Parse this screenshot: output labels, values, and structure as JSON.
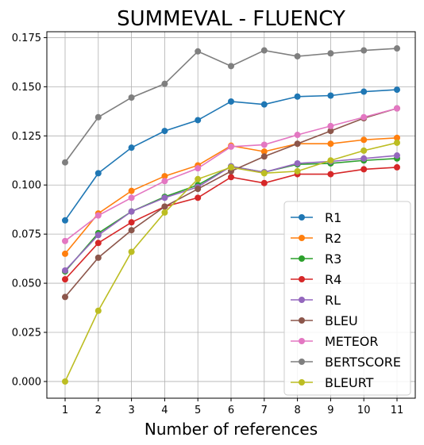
{
  "chart_data": {
    "type": "line",
    "title": "SUMMEVAL - FLUENCY",
    "xlabel": "Number of references",
    "ylabel": "",
    "x": [
      1,
      2,
      3,
      4,
      5,
      6,
      7,
      8,
      9,
      10,
      11
    ],
    "xlim": [
      0.45,
      11.55
    ],
    "ylim": [
      -0.0085,
      0.178
    ],
    "yticks": [
      0.0,
      0.025,
      0.05,
      0.075,
      0.1,
      0.125,
      0.15,
      0.175
    ],
    "ytick_labels": [
      "0.000",
      "0.025",
      "0.050",
      "0.075",
      "0.100",
      "0.125",
      "0.150",
      "0.175"
    ],
    "xtick_labels": [
      "1",
      "2",
      "3",
      "4",
      "5",
      "6",
      "7",
      "8",
      "9",
      "10",
      "11"
    ],
    "grid": true,
    "legend_position": "lower-right",
    "series": [
      {
        "name": "R1",
        "color": "#1f77b4",
        "values": [
          0.082,
          0.106,
          0.119,
          0.1275,
          0.133,
          0.1425,
          0.141,
          0.145,
          0.1455,
          0.1475,
          0.1485
        ]
      },
      {
        "name": "R2",
        "color": "#ff7f0e",
        "values": [
          0.065,
          0.0855,
          0.097,
          0.1045,
          0.11,
          0.12,
          0.117,
          0.121,
          0.121,
          0.123,
          0.124
        ]
      },
      {
        "name": "R3",
        "color": "#2ca02c",
        "values": [
          0.056,
          0.0755,
          0.0865,
          0.094,
          0.1,
          0.1095,
          0.1065,
          0.1105,
          0.111,
          0.1125,
          0.1135
        ]
      },
      {
        "name": "R4",
        "color": "#d62728",
        "values": [
          0.052,
          0.0705,
          0.081,
          0.089,
          0.0935,
          0.104,
          0.101,
          0.1055,
          0.1055,
          0.108,
          0.109
        ]
      },
      {
        "name": "RL",
        "color": "#9467bd",
        "values": [
          0.0565,
          0.0745,
          0.0865,
          0.0935,
          0.099,
          0.1095,
          0.1065,
          0.111,
          0.112,
          0.1135,
          0.115
        ]
      },
      {
        "name": "BLEU",
        "color": "#8c564b",
        "values": [
          0.043,
          0.063,
          0.077,
          0.089,
          0.098,
          0.107,
          0.1145,
          0.121,
          0.1275,
          0.134,
          0.139
        ]
      },
      {
        "name": "METEOR",
        "color": "#e377c2",
        "values": [
          0.0715,
          0.0845,
          0.0935,
          0.102,
          0.1085,
          0.1195,
          0.1205,
          0.1255,
          0.13,
          0.1345,
          0.139
        ]
      },
      {
        "name": "BERTSCORE",
        "color": "#7f7f7f",
        "values": [
          0.1115,
          0.1345,
          0.1445,
          0.1515,
          0.168,
          0.1605,
          0.1685,
          0.1655,
          0.167,
          0.1685,
          0.1695
        ]
      },
      {
        "name": "BLEURT",
        "color": "#bcbd22",
        "values": [
          0.0,
          0.036,
          0.066,
          0.086,
          0.103,
          0.109,
          0.106,
          0.107,
          0.1125,
          0.1175,
          0.1215
        ]
      }
    ]
  }
}
